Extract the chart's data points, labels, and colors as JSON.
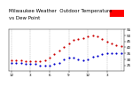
{
  "title": "Milwaukee Weather  Outdoor Temperature",
  "subtitle": "vs Dew Point",
  "temp_color": "#cc0000",
  "dew_color": "#0000cc",
  "legend_bar_blue": "#0000ff",
  "legend_bar_red": "#ff0000",
  "background": "#ffffff",
  "grid_color": "#aaaaaa",
  "ylim": [
    20,
    55
  ],
  "yticks": [
    25,
    30,
    35,
    40,
    45,
    50,
    55
  ],
  "temp_x": [
    0,
    1,
    2,
    3,
    4,
    5,
    6,
    7,
    8,
    9,
    10,
    11,
    12,
    13,
    14,
    15,
    16,
    17,
    18,
    19,
    20,
    21,
    22,
    23
  ],
  "temp_y": [
    29,
    29,
    29,
    28,
    28,
    28,
    28,
    29,
    31,
    34,
    37,
    40,
    43,
    46,
    47,
    48,
    49,
    50,
    49,
    47,
    45,
    43,
    42,
    41
  ],
  "dew_x": [
    0,
    1,
    2,
    3,
    4,
    5,
    6,
    7,
    8,
    9,
    10,
    11,
    12,
    13,
    14,
    15,
    16,
    17,
    18,
    19,
    20,
    21,
    22,
    23
  ],
  "dew_y": [
    27,
    27,
    27,
    26,
    26,
    26,
    25,
    25,
    25,
    26,
    27,
    30,
    31,
    31,
    30,
    29,
    30,
    32,
    33,
    34,
    35,
    35,
    35,
    35
  ],
  "xtick_positions": [
    0,
    4,
    8,
    12,
    16,
    20
  ],
  "xtick_labels": [
    "12",
    "3",
    "6",
    "9",
    "12",
    "3"
  ],
  "vgrid_positions": [
    0,
    4,
    8,
    12,
    16,
    20,
    23
  ],
  "title_fontsize": 4.0,
  "tick_fontsize": 3.0,
  "dot_size": 2.5
}
